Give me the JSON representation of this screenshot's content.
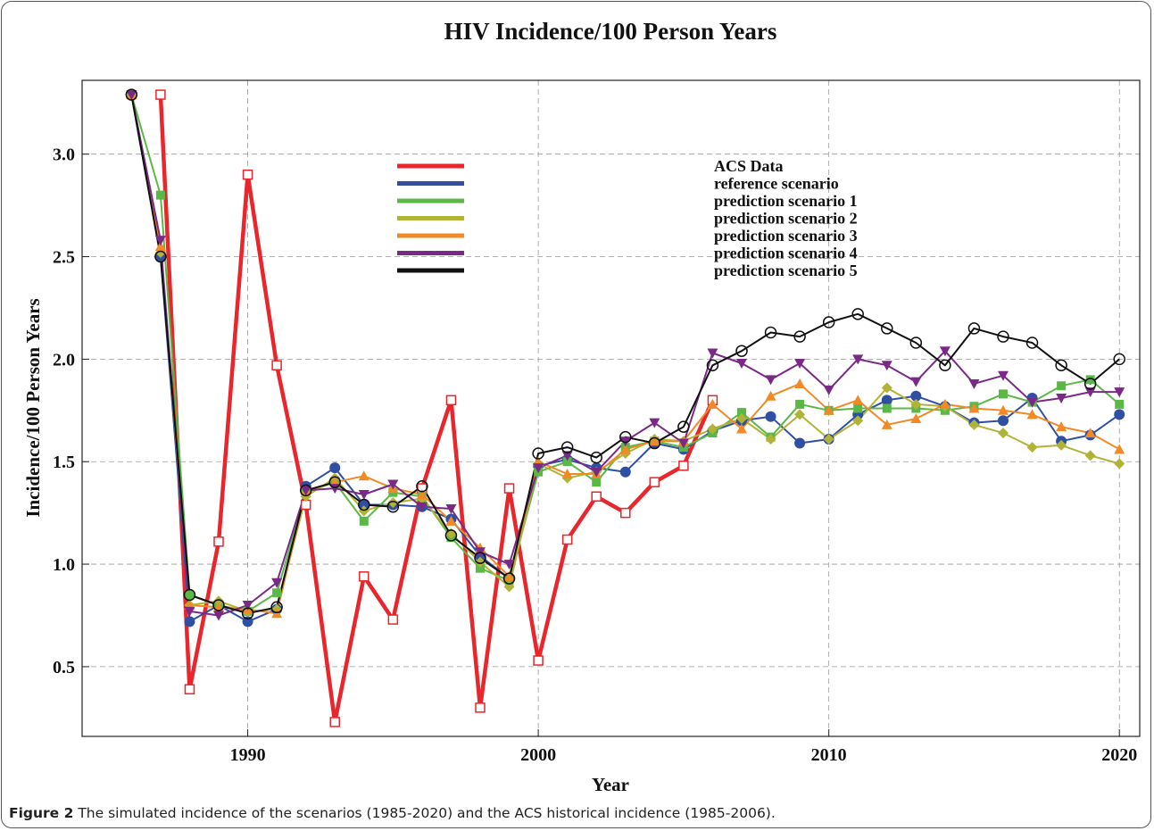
{
  "chart_data": {
    "type": "line",
    "title": "HIV Incidence/100 Person Years",
    "xlabel": "Year",
    "ylabel": "Incidence/100 Person Years",
    "xlim": [
      1984.3,
      2020.7
    ],
    "ylim": [
      0.16,
      3.36
    ],
    "xticks": [
      1990,
      2000,
      2010,
      2020
    ],
    "yticks": [
      {
        "value": 0.5,
        "label": "0.5"
      },
      {
        "value": 1.0,
        "label": "1.0"
      },
      {
        "value": 1.5,
        "label": "1.5"
      },
      {
        "value": 2.0,
        "label": "2.0"
      },
      {
        "value": 2.5,
        "label": "2.5"
      },
      {
        "value": 3.0,
        "label": "3.0"
      }
    ],
    "grid": true,
    "legend": "upper center",
    "x": [
      1986,
      1987,
      1988,
      1989,
      1990,
      1991,
      1992,
      1993,
      1994,
      1995,
      1996,
      1997,
      1998,
      1999,
      2000,
      2001,
      2002,
      2003,
      2004,
      2005,
      2006,
      2007,
      2008,
      2009,
      2010,
      2011,
      2012,
      2013,
      2014,
      2015,
      2016,
      2017,
      2018,
      2019,
      2020
    ],
    "series": [
      {
        "name": "ACS Data",
        "color": "#e8262b",
        "marker": "open-square",
        "width": 4.5,
        "values": [
          null,
          3.29,
          0.39,
          1.11,
          2.9,
          1.97,
          1.29,
          0.23,
          0.94,
          0.73,
          1.37,
          1.8,
          0.3,
          1.37,
          0.53,
          1.12,
          1.33,
          1.25,
          1.4,
          1.48,
          1.8,
          null,
          null,
          null,
          null,
          null,
          null,
          null,
          null,
          null,
          null,
          null,
          null,
          null,
          null
        ]
      },
      {
        "name": "reference scenario",
        "color": "#2f4fa2",
        "marker": "circle",
        "width": 2,
        "values": [
          3.29,
          2.5,
          0.72,
          0.8,
          0.72,
          0.78,
          1.38,
          1.47,
          1.29,
          1.29,
          1.28,
          1.22,
          1.04,
          0.93,
          1.48,
          1.51,
          1.47,
          1.45,
          1.59,
          1.56,
          1.65,
          1.7,
          1.72,
          1.59,
          1.61,
          1.73,
          1.8,
          1.82,
          1.77,
          1.69,
          1.7,
          1.81,
          1.6,
          1.63,
          1.73
        ]
      },
      {
        "name": "prediction scenario 1",
        "color": "#5cb846",
        "marker": "square",
        "width": 2,
        "values": [
          3.29,
          2.8,
          0.85,
          0.8,
          0.77,
          0.86,
          1.35,
          1.4,
          1.21,
          1.35,
          1.33,
          1.13,
          0.98,
          0.92,
          1.45,
          1.5,
          1.4,
          1.57,
          1.6,
          1.57,
          1.64,
          1.74,
          1.62,
          1.78,
          1.75,
          1.76,
          1.76,
          1.76,
          1.75,
          1.77,
          1.83,
          1.79,
          1.87,
          1.9,
          1.78
        ]
      },
      {
        "name": "prediction scenario 2",
        "color": "#b1b336",
        "marker": "diamond",
        "width": 2,
        "values": [
          3.29,
          2.52,
          0.8,
          0.82,
          0.77,
          0.78,
          1.33,
          1.42,
          1.26,
          1.3,
          1.32,
          1.15,
          1.01,
          0.89,
          1.49,
          1.42,
          1.45,
          1.54,
          1.61,
          1.6,
          1.66,
          1.71,
          1.61,
          1.73,
          1.61,
          1.7,
          1.86,
          1.78,
          1.77,
          1.68,
          1.64,
          1.57,
          1.58,
          1.53,
          1.49
        ]
      },
      {
        "name": "prediction scenario 3",
        "color": "#f18a26",
        "marker": "triangle-up",
        "width": 2,
        "values": [
          3.29,
          2.55,
          0.8,
          0.79,
          0.78,
          0.76,
          1.36,
          1.4,
          1.43,
          1.37,
          1.34,
          1.21,
          1.08,
          0.94,
          1.5,
          1.44,
          1.44,
          1.56,
          1.6,
          1.6,
          1.78,
          1.66,
          1.82,
          1.88,
          1.75,
          1.8,
          1.68,
          1.71,
          1.78,
          1.76,
          1.75,
          1.73,
          1.67,
          1.64,
          1.56
        ]
      },
      {
        "name": "prediction scenario 4",
        "color": "#7a2a86",
        "marker": "triangle-down",
        "width": 2,
        "values": [
          3.29,
          2.58,
          0.77,
          0.75,
          0.8,
          0.91,
          1.36,
          1.37,
          1.34,
          1.39,
          1.28,
          1.27,
          1.06,
          1.0,
          1.47,
          1.53,
          1.45,
          1.6,
          1.69,
          1.59,
          2.03,
          1.98,
          1.9,
          1.98,
          1.85,
          2.0,
          1.97,
          1.89,
          2.04,
          1.88,
          1.92,
          1.79,
          1.81,
          1.84,
          1.84
        ]
      },
      {
        "name": "prediction scenario 5",
        "color": "#111111",
        "marker": "open-circle",
        "width": 2,
        "values": [
          3.29,
          2.5,
          0.85,
          0.8,
          0.76,
          0.79,
          1.36,
          1.4,
          1.29,
          1.28,
          1.38,
          1.14,
          1.03,
          0.93,
          1.54,
          1.57,
          1.52,
          1.62,
          1.59,
          1.67,
          1.97,
          2.04,
          2.13,
          2.11,
          2.18,
          2.22,
          2.15,
          2.08,
          1.97,
          2.15,
          2.11,
          2.08,
          1.97,
          1.88,
          2.0
        ]
      }
    ],
    "caption_label": "Figure 2",
    "caption_text": "The simulated incidence of the scenarios (1985-2020) and the ACS historical incidence (1985-2006)."
  }
}
